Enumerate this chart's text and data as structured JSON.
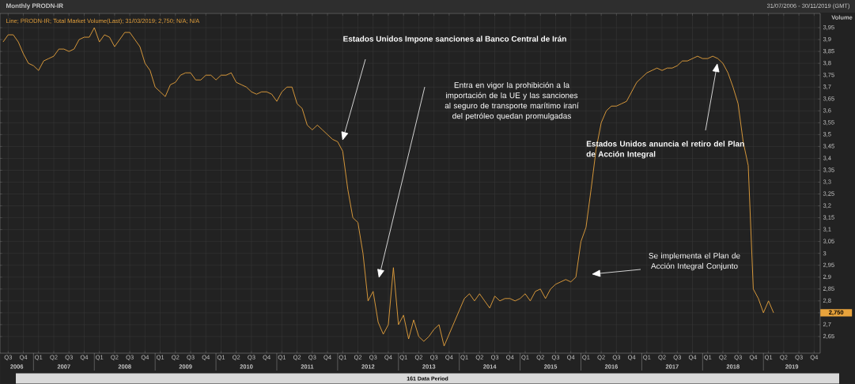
{
  "chart_data": {
    "type": "line",
    "title": "Monthly PRODN-IR",
    "ylabel": "Volume",
    "x": [
      "2006-07",
      "2006-08",
      "2006-09",
      "2006-10",
      "2006-11",
      "2006-12",
      "2007-01",
      "2007-02",
      "2007-03",
      "2007-04",
      "2007-05",
      "2007-06",
      "2007-07",
      "2007-08",
      "2007-09",
      "2007-10",
      "2007-11",
      "2007-12",
      "2008-01",
      "2008-02",
      "2008-03",
      "2008-04",
      "2008-05",
      "2008-06",
      "2008-07",
      "2008-08",
      "2008-09",
      "2008-10",
      "2008-11",
      "2008-12",
      "2009-01",
      "2009-02",
      "2009-03",
      "2009-04",
      "2009-05",
      "2009-06",
      "2009-07",
      "2009-08",
      "2009-09",
      "2009-10",
      "2009-11",
      "2009-12",
      "2010-01",
      "2010-02",
      "2010-03",
      "2010-04",
      "2010-05",
      "2010-06",
      "2010-07",
      "2010-08",
      "2010-09",
      "2010-10",
      "2010-11",
      "2010-12",
      "2011-01",
      "2011-02",
      "2011-03",
      "2011-04",
      "2011-05",
      "2011-06",
      "2011-07",
      "2011-08",
      "2011-09",
      "2011-10",
      "2011-11",
      "2011-12",
      "2012-01",
      "2012-02",
      "2012-03",
      "2012-04",
      "2012-05",
      "2012-06",
      "2012-07",
      "2012-08",
      "2012-09",
      "2012-10",
      "2012-11",
      "2012-12",
      "2013-01",
      "2013-02",
      "2013-03",
      "2013-04",
      "2013-05",
      "2013-06",
      "2013-07",
      "2013-08",
      "2013-09",
      "2013-10",
      "2013-11",
      "2013-12",
      "2014-01",
      "2014-02",
      "2014-03",
      "2014-04",
      "2014-05",
      "2014-06",
      "2014-07",
      "2014-08",
      "2014-09",
      "2014-10",
      "2014-11",
      "2014-12",
      "2015-01",
      "2015-02",
      "2015-03",
      "2015-04",
      "2015-05",
      "2015-06",
      "2015-07",
      "2015-08",
      "2015-09",
      "2015-10",
      "2015-11",
      "2015-12",
      "2016-01",
      "2016-02",
      "2016-03",
      "2016-04",
      "2016-05",
      "2016-06",
      "2016-07",
      "2016-08",
      "2016-09",
      "2016-10",
      "2016-11",
      "2016-12",
      "2017-01",
      "2017-02",
      "2017-03",
      "2017-04",
      "2017-05",
      "2017-06",
      "2017-07",
      "2017-08",
      "2017-09",
      "2017-10",
      "2017-11",
      "2017-12",
      "2018-01",
      "2018-02",
      "2018-03",
      "2018-04",
      "2018-05",
      "2018-06",
      "2018-07",
      "2018-08",
      "2018-09",
      "2018-10",
      "2018-11",
      "2018-12",
      "2019-01",
      "2019-02",
      "2019-03"
    ],
    "series": [
      {
        "name": "Line; PRODN-IR; Total Market Volume(Last);  31/03/2019; 2,750; N/A; N/A",
        "color": "#e8a33c",
        "values": [
          3.89,
          3.92,
          3.92,
          3.89,
          3.84,
          3.8,
          3.79,
          3.77,
          3.81,
          3.82,
          3.83,
          3.86,
          3.86,
          3.85,
          3.86,
          3.9,
          3.91,
          3.91,
          3.95,
          3.89,
          3.92,
          3.91,
          3.87,
          3.9,
          3.93,
          3.93,
          3.9,
          3.87,
          3.8,
          3.77,
          3.7,
          3.68,
          3.66,
          3.71,
          3.72,
          3.75,
          3.76,
          3.76,
          3.73,
          3.73,
          3.75,
          3.75,
          3.73,
          3.75,
          3.75,
          3.76,
          3.72,
          3.71,
          3.7,
          3.68,
          3.67,
          3.68,
          3.68,
          3.67,
          3.64,
          3.68,
          3.7,
          3.7,
          3.63,
          3.61,
          3.54,
          3.52,
          3.54,
          3.52,
          3.5,
          3.48,
          3.47,
          3.43,
          3.27,
          3.15,
          3.13,
          3.0,
          2.8,
          2.84,
          2.71,
          2.66,
          2.7,
          2.94,
          2.7,
          2.74,
          2.64,
          2.72,
          2.65,
          2.63,
          2.65,
          2.68,
          2.7,
          2.61,
          2.66,
          2.71,
          2.76,
          2.81,
          2.83,
          2.8,
          2.83,
          2.8,
          2.77,
          2.82,
          2.8,
          2.81,
          2.81,
          2.8,
          2.81,
          2.83,
          2.8,
          2.84,
          2.85,
          2.81,
          2.85,
          2.87,
          2.88,
          2.89,
          2.88,
          2.9,
          3.05,
          3.11,
          3.27,
          3.44,
          3.55,
          3.6,
          3.62,
          3.62,
          3.63,
          3.64,
          3.68,
          3.72,
          3.74,
          3.76,
          3.77,
          3.78,
          3.77,
          3.78,
          3.78,
          3.79,
          3.81,
          3.81,
          3.82,
          3.83,
          3.82,
          3.82,
          3.83,
          3.82,
          3.8,
          3.76,
          3.7,
          3.63,
          3.47,
          3.37,
          2.85,
          2.81,
          2.75,
          2.8,
          2.75
        ]
      }
    ],
    "xlim": [
      "2006-06-13",
      "2019-12-07"
    ],
    "xticks": [
      {
        "value": "2006-08",
        "label": "Q3"
      },
      {
        "value": "2006-11",
        "label": "Q4"
      },
      {
        "value": "2007-02",
        "label": "Q1"
      },
      {
        "value": "2007-05",
        "label": "Q2"
      },
      {
        "value": "2007-08",
        "label": "Q3"
      },
      {
        "value": "2007-11",
        "label": "Q4"
      },
      {
        "value": "2008-02",
        "label": "Q1"
      },
      {
        "value": "2008-05",
        "label": "Q2"
      },
      {
        "value": "2008-08",
        "label": "Q3"
      },
      {
        "value": "2008-11",
        "label": "Q4"
      },
      {
        "value": "2009-02",
        "label": "Q1"
      },
      {
        "value": "2009-05",
        "label": "Q2"
      },
      {
        "value": "2009-08",
        "label": "Q3"
      },
      {
        "value": "2009-11",
        "label": "Q4"
      },
      {
        "value": "2010-02",
        "label": "Q1"
      },
      {
        "value": "2010-05",
        "label": "Q2"
      },
      {
        "value": "2010-08",
        "label": "Q3"
      },
      {
        "value": "2010-11",
        "label": "Q4"
      },
      {
        "value": "2011-02",
        "label": "Q1"
      },
      {
        "value": "2011-05",
        "label": "Q2"
      },
      {
        "value": "2011-08",
        "label": "Q3"
      },
      {
        "value": "2011-11",
        "label": "Q4"
      },
      {
        "value": "2012-02",
        "label": "Q1"
      },
      {
        "value": "2012-05",
        "label": "Q2"
      },
      {
        "value": "2012-08",
        "label": "Q3"
      },
      {
        "value": "2012-11",
        "label": "Q4"
      },
      {
        "value": "2013-02",
        "label": "Q1"
      },
      {
        "value": "2013-05",
        "label": "Q2"
      },
      {
        "value": "2013-08",
        "label": "Q3"
      },
      {
        "value": "2013-11",
        "label": "Q4"
      },
      {
        "value": "2014-02",
        "label": "Q1"
      },
      {
        "value": "2014-05",
        "label": "Q2"
      },
      {
        "value": "2014-08",
        "label": "Q3"
      },
      {
        "value": "2014-11",
        "label": "Q4"
      },
      {
        "value": "2015-02",
        "label": "Q1"
      },
      {
        "value": "2015-05",
        "label": "Q2"
      },
      {
        "value": "2015-08",
        "label": "Q3"
      },
      {
        "value": "2015-11",
        "label": "Q4"
      },
      {
        "value": "2016-02",
        "label": "Q1"
      },
      {
        "value": "2016-05",
        "label": "Q2"
      },
      {
        "value": "2016-08",
        "label": "Q3"
      },
      {
        "value": "2016-11",
        "label": "Q4"
      },
      {
        "value": "2017-02",
        "label": "Q1"
      },
      {
        "value": "2017-05",
        "label": "Q2"
      },
      {
        "value": "2017-08",
        "label": "Q3"
      },
      {
        "value": "2017-11",
        "label": "Q4"
      },
      {
        "value": "2018-02",
        "label": "Q1"
      },
      {
        "value": "2018-05",
        "label": "Q2"
      },
      {
        "value": "2018-08",
        "label": "Q3"
      },
      {
        "value": "2018-11",
        "label": "Q4"
      },
      {
        "value": "2019-02",
        "label": "Q1"
      },
      {
        "value": "2019-05",
        "label": "Q2"
      },
      {
        "value": "2019-08",
        "label": "Q3"
      },
      {
        "value": "2019-11",
        "label": "Q4"
      }
    ],
    "ylim": [
      2.58,
      4.01
    ],
    "yticks": [
      {
        "value": 2.65,
        "label": "2,65"
      },
      {
        "value": 2.7,
        "label": "2,7"
      },
      {
        "value": 2.75,
        "label": null
      },
      {
        "value": 2.8,
        "label": "2,8"
      },
      {
        "value": 2.85,
        "label": "2,85"
      },
      {
        "value": 2.9,
        "label": "2,9"
      },
      {
        "value": 2.95,
        "label": "2,95"
      },
      {
        "value": 3.0,
        "label": "3"
      },
      {
        "value": 3.05,
        "label": "3,05"
      },
      {
        "value": 3.1,
        "label": "3,1"
      },
      {
        "value": 3.15,
        "label": "3,15"
      },
      {
        "value": 3.2,
        "label": "3,2"
      },
      {
        "value": 3.25,
        "label": "3,25"
      },
      {
        "value": 3.3,
        "label": "3,3"
      },
      {
        "value": 3.35,
        "label": "3,35"
      },
      {
        "value": 3.4,
        "label": "3,4"
      },
      {
        "value": 3.45,
        "label": "3,45"
      },
      {
        "value": 3.5,
        "label": "3,5"
      },
      {
        "value": 3.55,
        "label": "3,55"
      },
      {
        "value": 3.6,
        "label": "3,6"
      },
      {
        "value": 3.65,
        "label": "3,65"
      },
      {
        "value": 3.7,
        "label": "3,7"
      },
      {
        "value": 3.75,
        "label": "3,75"
      },
      {
        "value": 3.8,
        "label": "3,8"
      },
      {
        "value": 3.85,
        "label": "3,85"
      },
      {
        "value": 3.9,
        "label": "3,9"
      },
      {
        "value": 3.95,
        "label": "3,95"
      }
    ],
    "grid": true,
    "annotations": [
      "Estados Unidos Impone sanciones al Banco Central de Irán",
      "Entra en vigor la prohibición a la importación de la UE y las sanciones al seguro de transporte marítimo iraní del petróleo quedan promulgadas",
      "Estados Unidos anuncia el retiro del Plan de Acción Integral",
      "Se implementa el Plan de Acción Integral Conjunto",
      "31/07/2006 - 30/11/2019 (GMT)",
      "161 Data Period",
      "2,750",
      "2006",
      "2007",
      "2008",
      "2009",
      "2010",
      "2011",
      "2012",
      "2013",
      "2014",
      "2015",
      "2016",
      "2017",
      "2018",
      "2019"
    ]
  }
}
